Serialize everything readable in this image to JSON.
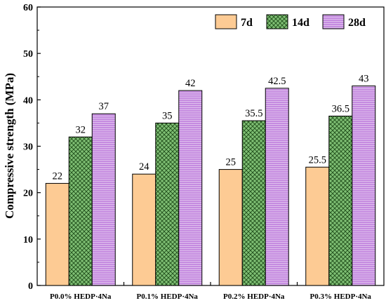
{
  "chart_data": {
    "type": "bar",
    "title": "",
    "xlabel": "",
    "ylabel": "Compressive strength (MPa)",
    "ylim": [
      0,
      60
    ],
    "yticks": [
      0,
      10,
      20,
      30,
      40,
      50,
      60
    ],
    "grid": false,
    "legend_position": "top-right",
    "categories": [
      "P0.0% HEDP·4Na",
      "P0.1% HEDP·4Na",
      "P0.2% HEDP·4Na",
      "P0.3% HEDP·4Na"
    ],
    "series": [
      {
        "name": "7d",
        "values": [
          22,
          24,
          25,
          25.5
        ],
        "labels": [
          "22",
          "24",
          "25",
          "25.5"
        ],
        "color": "#FDCB94",
        "pattern": "solid"
      },
      {
        "name": "14d",
        "values": [
          32,
          35,
          35.5,
          36.5
        ],
        "labels": [
          "32",
          "35",
          "35.5",
          "36.5"
        ],
        "color": "#7FBF74",
        "pattern": "crosshatch"
      },
      {
        "name": "28d",
        "values": [
          37,
          42,
          42.5,
          43
        ],
        "labels": [
          "37",
          "42",
          "42.5",
          "43"
        ],
        "color": "#C58BE0",
        "pattern": "horizontal-lines"
      }
    ]
  }
}
